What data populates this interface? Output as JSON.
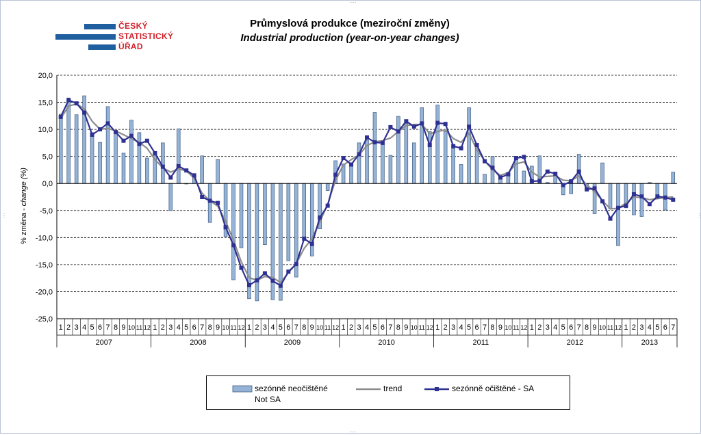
{
  "header": {
    "title_cz": "Průmyslová produkce (meziroční změny)",
    "title_en": "Industrial production (year-on-year changes)"
  },
  "logo": {
    "line1": "ČESKÝ",
    "line2": "STATISTICKÝ",
    "line3": "ÚŘAD",
    "color_text": "#d0202b",
    "color_bars": "#1f5fa0"
  },
  "chart_data": {
    "type": "bar",
    "ylabel_prefix": "% změna - ",
    "ylabel_italic": "change (%)",
    "ylim": [
      -25,
      20
    ],
    "yticks": [
      "20,0",
      "15,0",
      "10,0",
      "5,0",
      "0,0",
      "-5,0",
      "-10,0",
      "-15,0",
      "-20,0",
      "-25,0"
    ],
    "grid": true,
    "years": [
      "2007",
      "2008",
      "2009",
      "2010",
      "2011",
      "2012",
      "2013"
    ],
    "month_labels": [
      "1",
      "2",
      "3",
      "4",
      "5",
      "6",
      "7",
      "8",
      "9",
      "10",
      "11",
      "12"
    ],
    "last_year_months": 7,
    "series": [
      {
        "name": "sezónně neočištěné",
        "name_en": "Not SA",
        "type": "bar",
        "color": "#95b3d7",
        "values": [
          12.8,
          15.8,
          12.7,
          16.2,
          9.4,
          7.6,
          14.2,
          9.6,
          5.6,
          11.7,
          9.4,
          4.7,
          5.2,
          7.5,
          -5.0,
          10.1,
          -0.1,
          1.4,
          5.1,
          -7.2,
          4.4,
          -9.8,
          -17.8,
          -11.9,
          -21.3,
          -21.7,
          -11.3,
          -21.5,
          -21.6,
          -14.3,
          -17.3,
          -10.3,
          -13.4,
          -8.4,
          -1.3,
          4.2,
          3.6,
          3.3,
          7.5,
          8.0,
          13.1,
          7.2,
          5.2,
          12.4,
          11.1,
          7.5,
          14.0,
          9.6,
          14.5,
          9.6,
          6.5,
          3.5,
          14.0,
          7.0,
          1.7,
          5.0,
          1.0,
          1.6,
          4.5,
          2.3,
          3.2,
          5.1,
          0.2,
          1.8,
          -2.1,
          -1.9,
          5.4,
          -1.0,
          -5.6,
          3.8,
          -4.7,
          -11.5,
          -4.5,
          -5.8,
          -6.1,
          0.2,
          -2.3,
          -4.9,
          2.1
        ]
      },
      {
        "name": "trend",
        "type": "line",
        "color": "#8c8c8c",
        "values": [
          12.0,
          14.3,
          14.7,
          13.8,
          11.5,
          10.0,
          10.2,
          9.7,
          9.0,
          8.3,
          7.6,
          6.5,
          4.4,
          2.9,
          2.1,
          2.7,
          2.3,
          1.0,
          -1.8,
          -3.2,
          -4.2,
          -7.0,
          -10.5,
          -14.5,
          -17.4,
          -17.9,
          -17.2,
          -17.4,
          -18.3,
          -16.5,
          -14.8,
          -12.0,
          -10.2,
          -7.1,
          -3.8,
          0.6,
          3.4,
          4.4,
          5.3,
          7.0,
          7.7,
          7.9,
          8.4,
          9.6,
          10.7,
          10.9,
          10.9,
          9.2,
          9.6,
          9.9,
          8.3,
          7.6,
          9.3,
          6.2,
          4.2,
          2.5,
          1.5,
          2.0,
          3.6,
          4.0,
          2.1,
          1.2,
          1.3,
          1.4,
          0.6,
          0.5,
          1.4,
          -0.3,
          -1.5,
          -3.2,
          -4.7,
          -4.6,
          -3.6,
          -2.5,
          -2.6,
          -3.0,
          -2.8,
          -2.6,
          -2.5
        ]
      },
      {
        "name": "sezónně očištěné - SA",
        "type": "line",
        "color": "#2e3192",
        "values": [
          12.3,
          15.4,
          14.8,
          13.1,
          9.0,
          10.0,
          11.1,
          9.5,
          7.9,
          8.8,
          7.3,
          7.9,
          5.6,
          3.1,
          1.1,
          3.2,
          2.4,
          1.5,
          -2.5,
          -3.2,
          -3.6,
          -8.1,
          -11.4,
          -15.6,
          -18.8,
          -17.9,
          -16.6,
          -18.0,
          -18.9,
          -16.3,
          -14.9,
          -10.2,
          -11.2,
          -6.3,
          -4.1,
          1.6,
          4.7,
          3.5,
          5.4,
          8.5,
          7.6,
          7.5,
          10.4,
          9.6,
          11.5,
          10.5,
          11.1,
          7.1,
          11.2,
          11.0,
          6.9,
          6.5,
          10.5,
          7.1,
          4.1,
          2.9,
          1.1,
          1.7,
          4.7,
          4.9,
          0.4,
          0.5,
          2.2,
          1.8,
          -0.3,
          0.4,
          2.2,
          -1.1,
          -0.9,
          -3.3,
          -6.5,
          -4.5,
          -4.1,
          -2.0,
          -2.4,
          -3.8,
          -2.4,
          -2.6,
          -3.0
        ]
      }
    ]
  },
  "legend": {
    "not_sa_line1": "sezónně neočištěné",
    "not_sa_line2": "Not SA",
    "trend": "trend",
    "sa": "sezónně očištěné - SA"
  }
}
